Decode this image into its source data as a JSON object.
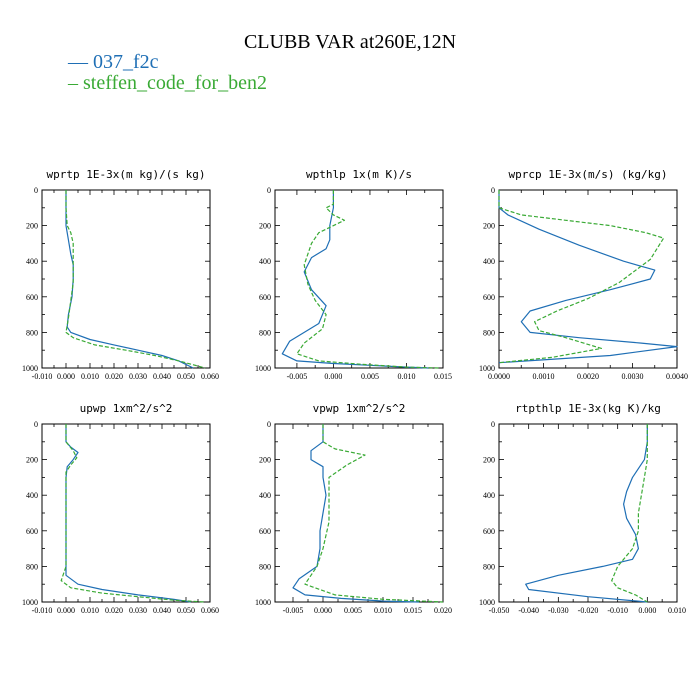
{
  "title": "CLUBB VAR at260E,12N",
  "legend": [
    {
      "label": "— 037_f2c",
      "color": "#1f6fb5"
    },
    {
      "label": "– steffen_code_for_ben2",
      "color": "#3aaa35"
    }
  ],
  "chart_data": [
    {
      "type": "line",
      "title": "wprtp  1E-3x(m kg)/(s kg)",
      "xlim": [
        -0.01,
        0.06
      ],
      "ylim": [
        1000,
        0
      ],
      "xticks": [
        -0.01,
        0,
        0.01,
        0.02,
        0.03,
        0.04,
        0.05,
        0.06
      ],
      "xticklabels": [
        "-0.010",
        "0.000",
        "0.010",
        "0.020",
        "0.030",
        "0.040",
        "0.050",
        "0.060"
      ],
      "yticks": [
        0,
        200,
        400,
        600,
        800,
        1000
      ],
      "yticklabels": [
        "0",
        "200",
        "400",
        "600",
        "800",
        "1000"
      ],
      "series": [
        {
          "color": "#1f6fb5",
          "dash": "none",
          "x": [
            0.0,
            0.0,
            0.0,
            0.001,
            0.002,
            0.003,
            0.003,
            0.0025,
            0.001,
            0.0005,
            0.002,
            0.01,
            0.02,
            0.03,
            0.04,
            0.047,
            0.053
          ],
          "y": [
            0,
            100,
            200,
            280,
            360,
            420,
            500,
            600,
            700,
            770,
            800,
            840,
            870,
            900,
            930,
            960,
            1000
          ]
        },
        {
          "color": "#3aaa35",
          "dash": "4,2",
          "x": [
            0.0,
            0.0,
            0.0005,
            0.002,
            0.003,
            0.003,
            0.003,
            0.002,
            0.001,
            0.0,
            0.003,
            0.012,
            0.025,
            0.037,
            0.047,
            0.058
          ],
          "y": [
            0,
            100,
            200,
            240,
            300,
            400,
            520,
            620,
            720,
            800,
            830,
            870,
            900,
            930,
            960,
            1000
          ]
        }
      ]
    },
    {
      "type": "line",
      "title": "wpthlp  1x(m K)/s",
      "xlim": [
        -0.008,
        0.015
      ],
      "ylim": [
        1000,
        0
      ],
      "xticks": [
        -0.005,
        0,
        0.005,
        0.01,
        0.015
      ],
      "xticklabels": [
        "-0.005",
        "0.000",
        "0.005",
        "0.010",
        "0.015"
      ],
      "yticks": [
        0,
        200,
        400,
        600,
        800,
        1000
      ],
      "yticklabels": [
        "0",
        "200",
        "400",
        "600",
        "800",
        "1000"
      ],
      "series": [
        {
          "color": "#1f6fb5",
          "dash": "none",
          "x": [
            0.0,
            0.0,
            -0.0005,
            -0.0005,
            -0.001,
            -0.003,
            -0.004,
            -0.003,
            -0.001,
            -0.002,
            -0.006,
            -0.007,
            -0.005,
            0.0,
            0.005,
            0.01,
            0.013
          ],
          "y": [
            0,
            100,
            200,
            280,
            330,
            380,
            460,
            560,
            650,
            750,
            850,
            920,
            960,
            975,
            985,
            995,
            1000
          ]
        },
        {
          "color": "#3aaa35",
          "dash": "4,2",
          "x": [
            0.0,
            0.0,
            -0.001,
            0.0,
            0.0015,
            -0.002,
            -0.003,
            -0.004,
            -0.0035,
            -0.0025,
            -0.001,
            -0.0015,
            -0.004,
            -0.005,
            -0.002,
            0.004,
            0.01,
            0.0145
          ],
          "y": [
            0,
            80,
            100,
            140,
            170,
            240,
            300,
            420,
            530,
            620,
            700,
            780,
            860,
            920,
            960,
            980,
            995,
            1000
          ]
        }
      ]
    },
    {
      "type": "line",
      "title": "wprcp  1E-3x(m/s) (kg/kg)",
      "xlim": [
        0,
        0.004
      ],
      "ylim": [
        1000,
        0
      ],
      "xticks": [
        0,
        0.001,
        0.002,
        0.003,
        0.004
      ],
      "xticklabels": [
        "0.0000",
        "0.0010",
        "0.0020",
        "0.0030",
        "0.0040"
      ],
      "yticks": [
        0,
        200,
        400,
        600,
        800,
        1000
      ],
      "yticklabels": [
        "0",
        "200",
        "400",
        "600",
        "800",
        "1000"
      ],
      "series": [
        {
          "color": "#1f6fb5",
          "dash": "none",
          "x": [
            0.0,
            0.0,
            0.0002,
            0.0009,
            0.0018,
            0.0028,
            0.0035,
            0.0034,
            0.0025,
            0.0015,
            0.0007,
            0.0005,
            0.0007,
            0.0018,
            0.0032,
            0.004,
            0.0025,
            0.0
          ],
          "y": [
            0,
            100,
            140,
            220,
            310,
            400,
            450,
            500,
            560,
            620,
            680,
            740,
            800,
            830,
            860,
            880,
            930,
            970
          ]
        },
        {
          "color": "#3aaa35",
          "dash": "4,2",
          "x": [
            0.0,
            0.0,
            0.0005,
            0.0015,
            0.0025,
            0.0033,
            0.0037,
            0.0034,
            0.0027,
            0.002,
            0.0013,
            0.0008,
            0.0009,
            0.0015,
            0.0023,
            0.0012,
            0.0
          ],
          "y": [
            0,
            100,
            140,
            170,
            200,
            240,
            270,
            390,
            520,
            610,
            680,
            740,
            790,
            830,
            890,
            940,
            970
          ]
        }
      ]
    },
    {
      "type": "line",
      "title": "upwp  1xm^2/s^2",
      "xlim": [
        -0.01,
        0.06
      ],
      "ylim": [
        1000,
        0
      ],
      "xticks": [
        -0.01,
        0,
        0.01,
        0.02,
        0.03,
        0.04,
        0.05,
        0.06
      ],
      "xticklabels": [
        "-0.010",
        "0.000",
        "0.010",
        "0.020",
        "0.030",
        "0.040",
        "0.050",
        "0.060"
      ],
      "yticks": [
        0,
        200,
        400,
        600,
        800,
        1000
      ],
      "yticklabels": [
        "0",
        "200",
        "400",
        "600",
        "800",
        "1000"
      ],
      "series": [
        {
          "color": "#1f6fb5",
          "dash": "none",
          "x": [
            0.0,
            0.0,
            0.002,
            0.005,
            0.003,
            0.0005,
            0.0,
            0.0,
            0.0,
            0.0,
            0.0,
            0.0,
            0.005,
            0.015,
            0.03,
            0.045,
            0.052
          ],
          "y": [
            0,
            100,
            130,
            160,
            200,
            240,
            300,
            400,
            500,
            600,
            700,
            850,
            900,
            930,
            960,
            985,
            1000
          ]
        },
        {
          "color": "#3aaa35",
          "dash": "4,2",
          "x": [
            0.0,
            0.0,
            0.003,
            0.0045,
            0.002,
            0.0,
            0.0,
            0.0,
            0.0,
            0.0,
            -0.002,
            0.002,
            0.015,
            0.03,
            0.045,
            0.058
          ],
          "y": [
            0,
            100,
            150,
            190,
            230,
            270,
            350,
            500,
            650,
            800,
            880,
            920,
            950,
            970,
            990,
            1000
          ]
        }
      ]
    },
    {
      "type": "line",
      "title": "vpwp  1xm^2/s^2",
      "xlim": [
        -0.008,
        0.02
      ],
      "ylim": [
        1000,
        0
      ],
      "xticks": [
        -0.005,
        0,
        0.005,
        0.01,
        0.015,
        0.02
      ],
      "xticklabels": [
        "-0.005",
        "0.000",
        "0.005",
        "0.010",
        "0.015",
        "0.020"
      ],
      "yticks": [
        0,
        200,
        400,
        600,
        800,
        1000
      ],
      "yticklabels": [
        "0",
        "200",
        "400",
        "600",
        "800",
        "1000"
      ],
      "series": [
        {
          "color": "#1f6fb5",
          "dash": "none",
          "x": [
            0.0,
            0.0,
            -0.002,
            -0.002,
            0.0,
            0.0,
            0.0005,
            0.0,
            -0.0005,
            -0.0005,
            -0.001,
            -0.004,
            -0.005,
            -0.003,
            0.003,
            0.01,
            0.016
          ],
          "y": [
            0,
            100,
            150,
            200,
            240,
            300,
            400,
            500,
            600,
            700,
            800,
            870,
            920,
            960,
            980,
            995,
            1000
          ]
        },
        {
          "color": "#3aaa35",
          "dash": "4,2",
          "x": [
            0.0,
            0.0,
            0.002,
            0.007,
            0.004,
            0.001,
            0.001,
            0.001,
            0.0,
            -0.001,
            -0.002,
            -0.003,
            0.002,
            0.01,
            0.02
          ],
          "y": [
            0,
            100,
            140,
            175,
            230,
            300,
            400,
            550,
            700,
            800,
            850,
            900,
            960,
            985,
            1000
          ]
        }
      ]
    },
    {
      "type": "line",
      "title": "rtpthlp  1E-3x(kg K)/kg",
      "xlim": [
        -0.05,
        0.01
      ],
      "ylim": [
        1000,
        0
      ],
      "xticks": [
        -0.05,
        -0.04,
        -0.03,
        -0.02,
        -0.01,
        0,
        0.01
      ],
      "xticklabels": [
        "-0.050",
        "-0.040",
        "-0.030",
        "-0.020",
        "-0.010",
        "0.000",
        "0.010"
      ],
      "yticks": [
        0,
        200,
        400,
        600,
        800,
        1000
      ],
      "yticklabels": [
        "0",
        "200",
        "400",
        "600",
        "800",
        "1000"
      ],
      "series": [
        {
          "color": "#1f6fb5",
          "dash": "none",
          "x": [
            0.0,
            0.0,
            -0.001,
            -0.005,
            -0.007,
            -0.008,
            -0.007,
            -0.004,
            -0.003,
            -0.005,
            -0.015,
            -0.03,
            -0.041,
            -0.04,
            -0.02,
            0.0
          ],
          "y": [
            0,
            100,
            200,
            300,
            380,
            450,
            530,
            620,
            700,
            760,
            800,
            850,
            900,
            930,
            970,
            1000
          ]
        },
        {
          "color": "#3aaa35",
          "dash": "4,2",
          "x": [
            0.0,
            0.0,
            0.0,
            -0.001,
            -0.002,
            -0.003,
            -0.003,
            -0.005,
            -0.01,
            -0.012,
            -0.01,
            -0.004,
            0.0
          ],
          "y": [
            0,
            100,
            200,
            300,
            400,
            500,
            600,
            700,
            800,
            880,
            920,
            960,
            1000
          ]
        }
      ]
    }
  ]
}
